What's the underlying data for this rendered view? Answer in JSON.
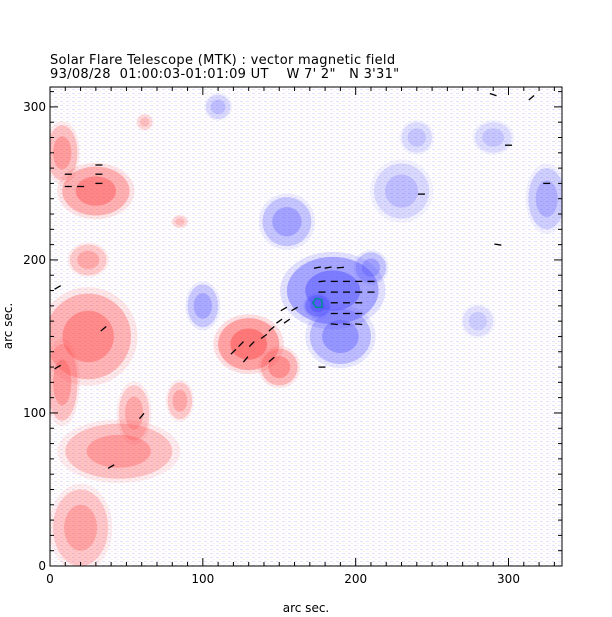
{
  "chart_data": {
    "type": "scatter",
    "title": "Solar Flare Telescope (MTK) : vector magnetic field",
    "subtitle": {
      "date": "93/08/28",
      "time_range": "01:00:03-01:01:09 UT",
      "lon": "W 7' 2\"",
      "lat": "N 3'31\""
    },
    "xlabel": "arc sec.",
    "ylabel": "arc sec.",
    "xlim": [
      0,
      335
    ],
    "ylim": [
      0,
      313
    ],
    "x_ticks": [
      0,
      100,
      200,
      300
    ],
    "y_ticks": [
      0,
      100,
      200,
      300
    ],
    "x_tick_labels": [
      "0",
      "100",
      "200",
      "300"
    ],
    "y_tick_labels": [
      "0",
      "100",
      "200",
      "300"
    ],
    "colors": {
      "positive_polarity": "#ff5050",
      "negative_polarity": "#5050ff",
      "vectors": "#000000",
      "contour": "#008c8c"
    },
    "regions": [
      {
        "polarity": "positive",
        "x": 30,
        "y": 245,
        "rx": 22,
        "ry": 16,
        "strength": 0.8
      },
      {
        "polarity": "positive",
        "x": 8,
        "y": 270,
        "rx": 10,
        "ry": 18,
        "strength": 0.6
      },
      {
        "polarity": "positive",
        "x": 25,
        "y": 200,
        "rx": 12,
        "ry": 10,
        "strength": 0.5
      },
      {
        "polarity": "positive",
        "x": 25,
        "y": 150,
        "rx": 28,
        "ry": 28,
        "strength": 0.75
      },
      {
        "polarity": "positive",
        "x": 8,
        "y": 120,
        "rx": 10,
        "ry": 25,
        "strength": 0.6
      },
      {
        "polarity": "positive",
        "x": 45,
        "y": 75,
        "rx": 35,
        "ry": 18,
        "strength": 0.6
      },
      {
        "polarity": "positive",
        "x": 55,
        "y": 100,
        "rx": 10,
        "ry": 18,
        "strength": 0.5
      },
      {
        "polarity": "positive",
        "x": 20,
        "y": 25,
        "rx": 18,
        "ry": 25,
        "strength": 0.55
      },
      {
        "polarity": "positive",
        "x": 85,
        "y": 108,
        "rx": 8,
        "ry": 12,
        "strength": 0.5
      },
      {
        "polarity": "positive",
        "x": 130,
        "y": 145,
        "rx": 20,
        "ry": 17,
        "strength": 0.95
      },
      {
        "polarity": "positive",
        "x": 150,
        "y": 130,
        "rx": 12,
        "ry": 12,
        "strength": 0.7
      },
      {
        "polarity": "positive",
        "x": 62,
        "y": 290,
        "rx": 5,
        "ry": 5,
        "strength": 0.35
      },
      {
        "polarity": "positive",
        "x": 85,
        "y": 225,
        "rx": 5,
        "ry": 4,
        "strength": 0.35
      },
      {
        "polarity": "negative",
        "x": 185,
        "y": 180,
        "rx": 30,
        "ry": 22,
        "strength": 0.9
      },
      {
        "polarity": "negative",
        "x": 175,
        "y": 170,
        "rx": 8,
        "ry": 7,
        "strength": 1.0
      },
      {
        "polarity": "negative",
        "x": 190,
        "y": 150,
        "rx": 20,
        "ry": 18,
        "strength": 0.65
      },
      {
        "polarity": "negative",
        "x": 155,
        "y": 225,
        "rx": 16,
        "ry": 16,
        "strength": 0.55
      },
      {
        "polarity": "negative",
        "x": 210,
        "y": 195,
        "rx": 10,
        "ry": 10,
        "strength": 0.55
      },
      {
        "polarity": "negative",
        "x": 100,
        "y": 170,
        "rx": 10,
        "ry": 14,
        "strength": 0.5
      },
      {
        "polarity": "negative",
        "x": 230,
        "y": 245,
        "rx": 18,
        "ry": 18,
        "strength": 0.35
      },
      {
        "polarity": "negative",
        "x": 325,
        "y": 240,
        "rx": 12,
        "ry": 20,
        "strength": 0.45
      },
      {
        "polarity": "negative",
        "x": 240,
        "y": 280,
        "rx": 10,
        "ry": 10,
        "strength": 0.3
      },
      {
        "polarity": "negative",
        "x": 110,
        "y": 300,
        "rx": 8,
        "ry": 8,
        "strength": 0.35
      },
      {
        "polarity": "negative",
        "x": 290,
        "y": 280,
        "rx": 12,
        "ry": 10,
        "strength": 0.3
      },
      {
        "polarity": "negative",
        "x": 280,
        "y": 160,
        "rx": 10,
        "ry": 10,
        "strength": 0.25
      }
    ],
    "vectors": [
      {
        "x": 175,
        "y": 195,
        "angle": 10
      },
      {
        "x": 182,
        "y": 195,
        "angle": 10
      },
      {
        "x": 190,
        "y": 195,
        "angle": 5
      },
      {
        "x": 178,
        "y": 186,
        "angle": 5
      },
      {
        "x": 186,
        "y": 186,
        "angle": 0
      },
      {
        "x": 194,
        "y": 186,
        "angle": 0
      },
      {
        "x": 202,
        "y": 186,
        "angle": 0
      },
      {
        "x": 210,
        "y": 186,
        "angle": 0
      },
      {
        "x": 178,
        "y": 179,
        "angle": 0
      },
      {
        "x": 186,
        "y": 179,
        "angle": 0
      },
      {
        "x": 194,
        "y": 179,
        "angle": 0
      },
      {
        "x": 202,
        "y": 179,
        "angle": 0
      },
      {
        "x": 210,
        "y": 179,
        "angle": 0
      },
      {
        "x": 186,
        "y": 172,
        "angle": 0
      },
      {
        "x": 194,
        "y": 172,
        "angle": 0
      },
      {
        "x": 202,
        "y": 172,
        "angle": 0
      },
      {
        "x": 186,
        "y": 165,
        "angle": 0
      },
      {
        "x": 194,
        "y": 165,
        "angle": 0
      },
      {
        "x": 202,
        "y": 165,
        "angle": 0
      },
      {
        "x": 186,
        "y": 158,
        "angle": -5
      },
      {
        "x": 194,
        "y": 158,
        "angle": -5
      },
      {
        "x": 202,
        "y": 158,
        "angle": -5
      },
      {
        "x": 153,
        "y": 168,
        "angle": 30
      },
      {
        "x": 160,
        "y": 168,
        "angle": 30
      },
      {
        "x": 150,
        "y": 160,
        "angle": 35
      },
      {
        "x": 155,
        "y": 160,
        "angle": 35
      },
      {
        "x": 145,
        "y": 155,
        "angle": 40
      },
      {
        "x": 140,
        "y": 150,
        "angle": 35
      },
      {
        "x": 125,
        "y": 145,
        "angle": 45
      },
      {
        "x": 132,
        "y": 145,
        "angle": 45
      },
      {
        "x": 120,
        "y": 140,
        "angle": 45
      },
      {
        "x": 128,
        "y": 135,
        "angle": 50
      },
      {
        "x": 145,
        "y": 135,
        "angle": 40
      },
      {
        "x": 12,
        "y": 248,
        "angle": 0
      },
      {
        "x": 20,
        "y": 248,
        "angle": 0
      },
      {
        "x": 32,
        "y": 256,
        "angle": 0
      },
      {
        "x": 32,
        "y": 262,
        "angle": 0
      },
      {
        "x": 32,
        "y": 250,
        "angle": 0
      },
      {
        "x": 12,
        "y": 256,
        "angle": 0
      },
      {
        "x": 5,
        "y": 182,
        "angle": 30
      },
      {
        "x": 35,
        "y": 155,
        "angle": 40
      },
      {
        "x": 5,
        "y": 130,
        "angle": 30
      },
      {
        "x": 60,
        "y": 98,
        "angle": 50
      },
      {
        "x": 40,
        "y": 65,
        "angle": 30
      },
      {
        "x": 178,
        "y": 130,
        "angle": 0
      },
      {
        "x": 315,
        "y": 306,
        "angle": 40
      },
      {
        "x": 290,
        "y": 308,
        "angle": -20
      },
      {
        "x": 300,
        "y": 275,
        "angle": 0
      },
      {
        "x": 325,
        "y": 250,
        "angle": 0
      },
      {
        "x": 243,
        "y": 243,
        "angle": 0
      },
      {
        "x": 293,
        "y": 210,
        "angle": -10
      }
    ],
    "contour": [
      {
        "x": 174,
        "y": 175
      },
      {
        "x": 178,
        "y": 174
      },
      {
        "x": 178,
        "y": 169
      },
      {
        "x": 174,
        "y": 169
      },
      {
        "x": 172,
        "y": 172
      },
      {
        "x": 174,
        "y": 175
      }
    ]
  }
}
